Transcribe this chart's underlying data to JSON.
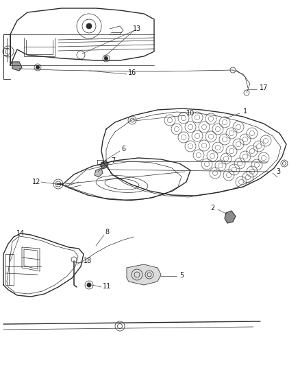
{
  "background_color": "#ffffff",
  "line_color": "#2a2a2a",
  "label_color": "#1a1a1a",
  "label_font_size": 7,
  "fig_width": 4.38,
  "fig_height": 5.33,
  "dpi": 100,
  "gray_fill": "#b0b0b0",
  "dark_fill": "#707070",
  "light_fill": "#d8d8d8",
  "leader_color": "#444444"
}
